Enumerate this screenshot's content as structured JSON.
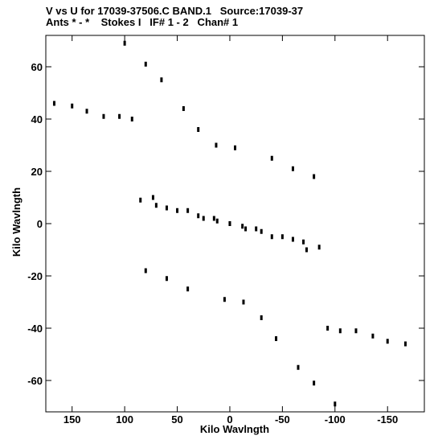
{
  "header": {
    "line1": "V vs U for 17039-37506.C BAND.1   Source:17039-37",
    "line2": "Ants * - *    Stokes I   IF# 1 - 2   Chan# 1"
  },
  "chart_data": {
    "type": "scatter",
    "title": "V vs U for 17039-37506.C BAND.1   Source:17039-37",
    "subtitle": "Ants * - *    Stokes I   IF# 1 - 2   Chan# 1",
    "xlabel": "Kilo Wavlngth",
    "ylabel": "Kilo Wavlngth",
    "xlim": [
      175,
      -185
    ],
    "ylim": [
      -72,
      72
    ],
    "xticks": [
      150,
      100,
      50,
      0,
      -50,
      -100,
      -150
    ],
    "xtick_labels": [
      "150",
      "100",
      "50",
      "0",
      "-50",
      "-100",
      "-150"
    ],
    "yticks": [
      60,
      40,
      20,
      0,
      -20,
      -40,
      -60
    ],
    "ytick_labels": [
      "60",
      "40",
      "20",
      "0",
      "-20",
      "-40",
      "-60"
    ],
    "grid": false,
    "marker_color": "#000000",
    "tracks": [
      {
        "u": 100,
        "v": 69
      },
      {
        "u": 80,
        "v": 61
      },
      {
        "u": 65,
        "v": 55
      },
      {
        "u": 44,
        "v": 44
      },
      {
        "u": 30,
        "v": 36
      },
      {
        "u": 13,
        "v": 30
      },
      {
        "u": -5,
        "v": 29
      },
      {
        "u": 167,
        "v": 46
      },
      {
        "u": 150,
        "v": 45
      },
      {
        "u": 136,
        "v": 43
      },
      {
        "u": 120,
        "v": 41
      },
      {
        "u": 105,
        "v": 41
      },
      {
        "u": 93,
        "v": 40
      },
      {
        "u": -40,
        "v": 25
      },
      {
        "u": -60,
        "v": 21
      },
      {
        "u": -80,
        "v": 18
      },
      {
        "u": 73,
        "v": 10
      },
      {
        "u": 60,
        "v": 6
      },
      {
        "u": 40,
        "v": 5
      },
      {
        "u": 25,
        "v": 2
      },
      {
        "u": 12,
        "v": 1
      },
      {
        "u": 0,
        "v": 0
      },
      {
        "u": -15,
        "v": -2
      },
      {
        "u": -30,
        "v": -3
      },
      {
        "u": -50,
        "v": -5
      },
      {
        "u": -70,
        "v": -7
      },
      {
        "u": -85,
        "v": -9
      }
    ]
  }
}
